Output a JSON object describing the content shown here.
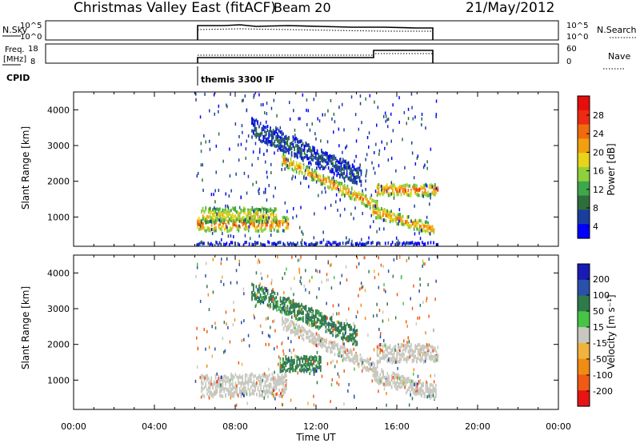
{
  "header": {
    "title": "Christmas Valley East (fitACF)",
    "beam": "Beam 20",
    "date": "21/May/2012"
  },
  "mini_panels": {
    "nsky_label": "N.Sky",
    "nsky_ticks": [
      "10^5",
      "10^0"
    ],
    "nsearch_label": "N.Search",
    "nsearch_ticks": [
      "10^5",
      "10^0"
    ],
    "freq_label_line1": "Freq.",
    "freq_label_line2": "[MHz]",
    "freq_ticks": [
      "18",
      "8"
    ],
    "nave_label": "Nave",
    "nave_ticks": [
      "60",
      "0"
    ],
    "cpid_label": "CPID",
    "cpid_text": "themis 3300 IF"
  },
  "colorbars": {
    "power": {
      "label": "Power [dB]",
      "ticks": [
        "28",
        "24",
        "20",
        "16",
        "12",
        "8",
        "4"
      ],
      "colors": [
        "#0000ff",
        "#1a3da0",
        "#2e6e3a",
        "#3da84a",
        "#8fd13a",
        "#e8d51a",
        "#f2a010",
        "#f26a10",
        "#ee2a12",
        "#e60d0d"
      ]
    },
    "velocity": {
      "label": "Velocity [m s⁻¹]",
      "ticks": [
        "200",
        "100",
        "50",
        "15",
        "-15",
        "-50",
        "-100",
        "-200"
      ],
      "colors": [
        "#1a1ab4",
        "#2a50a8",
        "#2e7a4a",
        "#46c446",
        "#c8c8c0",
        "#f0b43c",
        "#f08c14",
        "#f05a14",
        "#e61414"
      ]
    }
  },
  "chart_data": [
    {
      "type": "heatmap",
      "name": "Power",
      "ylabel": "Slant Range [km]",
      "yticks": [
        "1000",
        "2000",
        "3000",
        "4000"
      ],
      "xlim": [
        "00:00",
        "24:00"
      ],
      "ylim": [
        180,
        4500
      ],
      "data_window": [
        "06:00",
        "18:00"
      ],
      "features": [
        {
          "t_start": 6.1,
          "t_end": 10.6,
          "r_center": 800,
          "r_width": 280,
          "value": 24
        },
        {
          "t_start": 6.3,
          "t_end": 10.0,
          "r_center": 1050,
          "r_width": 300,
          "value": 18
        },
        {
          "t_start": 10.3,
          "t_end": 15.0,
          "r_center_start": 2600,
          "r_center_end": 1300,
          "r_width": 220,
          "value": 22
        },
        {
          "t_start": 15.0,
          "t_end": 18.0,
          "r_center": 1750,
          "r_width": 220,
          "value": 24
        },
        {
          "t_start": 14.8,
          "t_end": 17.8,
          "r_center_start": 1150,
          "r_center_end": 650,
          "r_width": 220,
          "value": 22
        },
        {
          "t_start": 8.8,
          "t_end": 14.2,
          "r_center_start": 3500,
          "r_center_end": 2100,
          "r_width": 380,
          "value": 6
        },
        {
          "t_start": 6.0,
          "t_end": 18.0,
          "r_center": 250,
          "r_width": 60,
          "value": 4
        }
      ]
    },
    {
      "type": "heatmap",
      "name": "Velocity",
      "ylabel": "Slant Range [km]",
      "yticks": [
        "1000",
        "2000",
        "3000",
        "4000"
      ],
      "xticks": [
        "00:00",
        "04:00",
        "08:00",
        "12:00",
        "16:00",
        "20:00",
        "00:00"
      ],
      "xlabel": "Time UT",
      "xlim": [
        "00:00",
        "24:00"
      ],
      "ylim": [
        180,
        4500
      ],
      "data_window": [
        "06:00",
        "18:00"
      ],
      "features": [
        {
          "t_start": 10.2,
          "t_end": 12.2,
          "r_center": 1450,
          "r_width": 300,
          "value": 40
        },
        {
          "t_start": 6.3,
          "t_end": 10.5,
          "r_center": 850,
          "r_width": 450,
          "value": 0
        },
        {
          "t_start": 10.3,
          "t_end": 15.0,
          "r_center_start": 2600,
          "r_center_end": 1300,
          "r_width": 250,
          "value": 0
        },
        {
          "t_start": 15.0,
          "t_end": 18.0,
          "r_center": 1750,
          "r_width": 350,
          "value": 0
        },
        {
          "t_start": 14.8,
          "t_end": 17.9,
          "r_center_start": 1150,
          "r_center_end": 650,
          "r_width": 300,
          "value": 0
        },
        {
          "t_start": 8.8,
          "t_end": 14.0,
          "r_center_start": 3500,
          "r_center_end": 2200,
          "r_width": 350,
          "value": 40
        }
      ]
    }
  ]
}
